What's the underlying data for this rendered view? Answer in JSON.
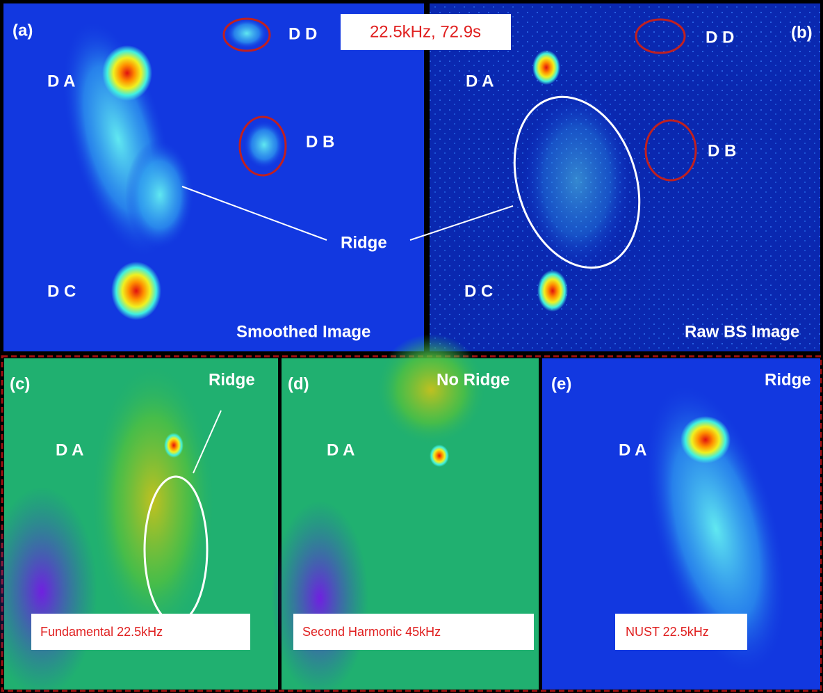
{
  "header": {
    "title": "22.5kHz, 72.9s"
  },
  "shared_label": "Ridge",
  "panels": [
    {
      "label": "(a)",
      "caption": "Smoothed Image",
      "annotations": [
        "D D",
        "D A",
        "D B",
        "D C"
      ]
    },
    {
      "label": "(b)",
      "caption": "Raw BS Image",
      "annotations": [
        "D D",
        "D A",
        "D B",
        "D C"
      ]
    },
    {
      "label": "(c)",
      "caption": "Fundamental 22.5kHz",
      "annotations": [
        "Ridge",
        "D A"
      ]
    },
    {
      "label": "(d)",
      "caption": "Second Harmonic 45kHz",
      "annotations": [
        "No Ridge",
        "D A"
      ]
    },
    {
      "label": "(e)",
      "caption": "NUST 22.5kHz",
      "annotations": [
        "Ridge",
        "D A"
      ]
    }
  ]
}
